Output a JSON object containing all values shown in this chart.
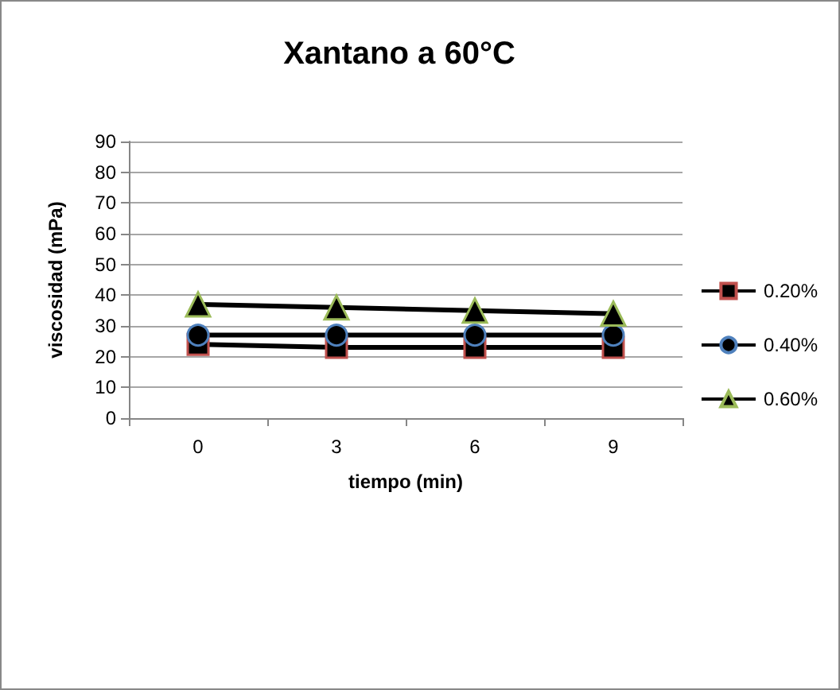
{
  "chart_data": {
    "type": "line",
    "title": "Xantano a 60°C",
    "xlabel": "tiempo (min)",
    "ylabel": "viscosidad (mPa)",
    "categories": [
      "0",
      "3",
      "6",
      "9"
    ],
    "series": [
      {
        "name": "0.20%",
        "color": "#000000",
        "marker": "square",
        "values": [
          24,
          23,
          23,
          23
        ]
      },
      {
        "name": "0.40%",
        "color": "#000000",
        "marker": "circle",
        "values": [
          27,
          27,
          27,
          27
        ]
      },
      {
        "name": "0.60%",
        "color": "#000000",
        "marker": "triangle",
        "values": [
          37,
          36,
          35,
          34
        ]
      }
    ],
    "ylim": [
      0,
      90
    ],
    "yticks": [
      0,
      10,
      20,
      30,
      40,
      50,
      60,
      70,
      80,
      90
    ],
    "grid": "y",
    "legend": "right"
  }
}
